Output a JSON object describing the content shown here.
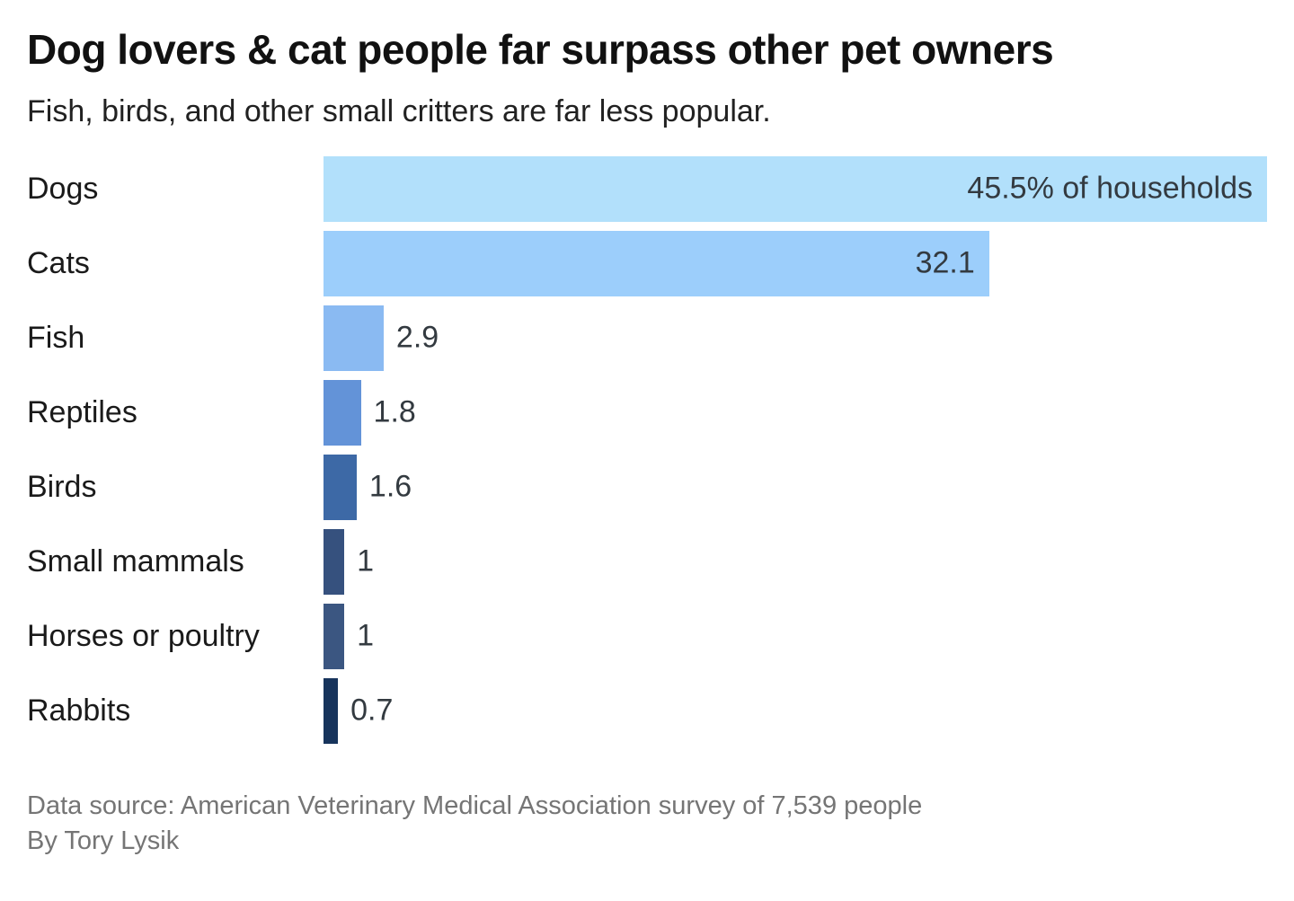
{
  "title": "Dog lovers & cat people far surpass other pet owners",
  "subtitle": "Fish, birds, and other small critters are far less popular.",
  "footer": {
    "source": "Data source: American Veterinary Medical Association survey of 7,539 people",
    "byline": "By Tory Lysik"
  },
  "chart_data": {
    "type": "bar",
    "orientation": "horizontal",
    "title": "Dog lovers & cat people far surpass other pet owners",
    "subtitle": "Fish, birds, and other small critters are far less popular.",
    "categories": [
      "Dogs",
      "Cats",
      "Fish",
      "Reptiles",
      "Birds",
      "Small mammals",
      "Horses or poultry",
      "Rabbits"
    ],
    "values": [
      45.5,
      32.1,
      2.9,
      1.8,
      1.6,
      1,
      1,
      0.7
    ],
    "value_labels": [
      "45.5% of households",
      "32.1",
      "2.9",
      "1.8",
      "1.6",
      "1",
      "1",
      "0.7"
    ],
    "unit": "% of households",
    "xlim": [
      0,
      45.5
    ],
    "grid": false,
    "legend": false,
    "bar_colors": [
      "#b2e0fb",
      "#9ccefb",
      "#8abaf2",
      "#6393d8",
      "#3d69a6",
      "#36517e",
      "#3b5681",
      "#17345c"
    ],
    "text_color": "#333a40",
    "background_color": "#ffffff"
  }
}
